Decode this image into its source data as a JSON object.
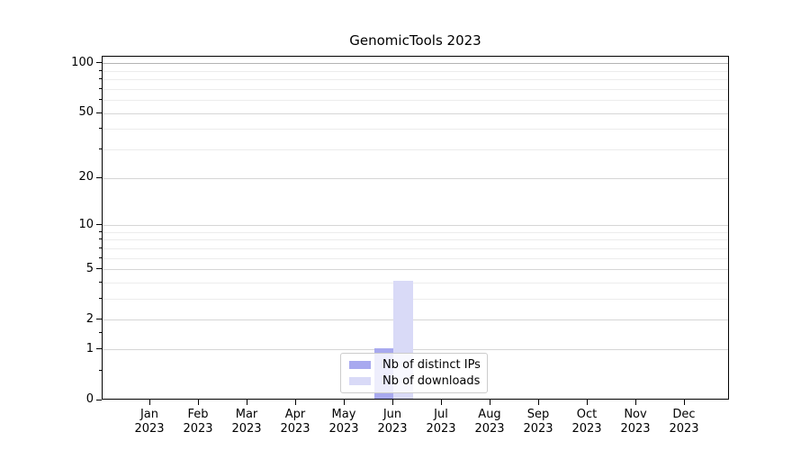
{
  "chart_data": {
    "type": "bar",
    "title": "GenomicTools 2023",
    "categories": [
      "Jan 2023",
      "Feb 2023",
      "Mar 2023",
      "Apr 2023",
      "May 2023",
      "Jun 2023",
      "Jul 2023",
      "Aug 2023",
      "Sep 2023",
      "Oct 2023",
      "Nov 2023",
      "Dec 2023"
    ],
    "series": [
      {
        "name": "Nb of distinct IPs",
        "color": "#a8a9ef",
        "values": [
          0,
          0,
          0,
          0,
          0,
          1,
          0,
          0,
          0,
          0,
          0,
          0
        ]
      },
      {
        "name": "Nb of downloads",
        "color": "#d9daf7",
        "values": [
          0,
          0,
          0,
          0,
          0,
          4,
          0,
          0,
          0,
          0,
          0,
          0
        ]
      }
    ],
    "xlabel": "",
    "ylabel": "",
    "y_axis": {
      "scale": "log1p",
      "ticks": [
        0,
        1,
        2,
        5,
        10,
        20,
        50,
        100
      ],
      "minor_gridlines": [
        3,
        4,
        6,
        7,
        8,
        9,
        30,
        40,
        60,
        70,
        80,
        90
      ],
      "minor_ticks": [
        0.5,
        1.5,
        3,
        4,
        6,
        7,
        8,
        9,
        30,
        40,
        60,
        70,
        80,
        90
      ],
      "ylim": [
        0,
        110
      ]
    },
    "legend": {
      "position": "lower center",
      "background": "rgba(255,255,255,0.8)",
      "border_color": "#cccccc"
    },
    "grid": {
      "on": true,
      "major_color": "#d6d6d6",
      "minor_color": "#ececec",
      "top_major_color": "#b4b4b4"
    }
  }
}
